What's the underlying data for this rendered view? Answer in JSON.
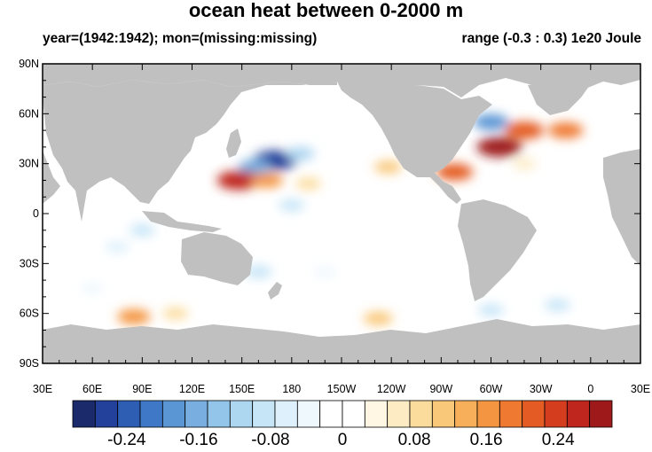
{
  "title": "ocean heat between 0-2000 m",
  "subtitle_left": "year=(1942:1942); mon=(missing:missing)",
  "subtitle_right": "range (-0.3 : 0.3) 1e20 Joule",
  "lat_ticks": [
    {
      "value": 90,
      "label": "90N"
    },
    {
      "value": 60,
      "label": "60N"
    },
    {
      "value": 30,
      "label": "30N"
    },
    {
      "value": 0,
      "label": "0"
    },
    {
      "value": -30,
      "label": "30S"
    },
    {
      "value": -60,
      "label": "60S"
    },
    {
      "value": -90,
      "label": "90S"
    }
  ],
  "lon_ticks": [
    {
      "value": 30,
      "label": "30E"
    },
    {
      "value": 60,
      "label": "60E"
    },
    {
      "value": 90,
      "label": "90E"
    },
    {
      "value": 120,
      "label": "120E"
    },
    {
      "value": 150,
      "label": "150E"
    },
    {
      "value": 180,
      "label": "180"
    },
    {
      "value": 210,
      "label": "150W"
    },
    {
      "value": 240,
      "label": "120W"
    },
    {
      "value": 270,
      "label": "90W"
    },
    {
      "value": 300,
      "label": "60W"
    },
    {
      "value": 330,
      "label": "30W"
    },
    {
      "value": 360,
      "label": "0"
    },
    {
      "value": 390,
      "label": "30E"
    }
  ],
  "colorbar": {
    "colors": [
      "#1b2a6b",
      "#23409a",
      "#2e5db4",
      "#3f78c6",
      "#5a95d4",
      "#78aee0",
      "#93c4ea",
      "#add6f1",
      "#c6e5f7",
      "#ddf0fb",
      "#eef8fd",
      "#ffffff",
      "#ffffff",
      "#fff7e3",
      "#fdebc4",
      "#fbdc9c",
      "#f9c879",
      "#f7b059",
      "#f49541",
      "#ef7930",
      "#e45c24",
      "#d43e1f",
      "#bf261d",
      "#9e1a1a"
    ],
    "labels": [
      {
        "value": -0.24,
        "text": "-0.24"
      },
      {
        "value": -0.16,
        "text": "-0.16"
      },
      {
        "value": -0.08,
        "text": "-0.08"
      },
      {
        "value": 0,
        "text": "0"
      },
      {
        "value": 0.08,
        "text": "0.08"
      },
      {
        "value": 0.16,
        "text": "0.16"
      },
      {
        "value": 0.24,
        "text": "0.24"
      }
    ],
    "range": [
      -0.3,
      0.3
    ]
  },
  "colors": {
    "land": "#c0c0c0",
    "ocean": "#ffffff"
  },
  "anomalies": [
    {
      "lon": 170,
      "lat": 32,
      "v": -0.27
    },
    {
      "lon": 158,
      "lat": 28,
      "v": -0.16
    },
    {
      "lon": 185,
      "lat": 36,
      "v": -0.12
    },
    {
      "lon": 148,
      "lat": 20,
      "v": 0.26
    },
    {
      "lon": 165,
      "lat": 20,
      "v": 0.15
    },
    {
      "lon": 190,
      "lat": 18,
      "v": 0.08
    },
    {
      "lon": 238,
      "lat": 28,
      "v": 0.1
    },
    {
      "lon": 180,
      "lat": 5,
      "v": -0.08
    },
    {
      "lon": 90,
      "lat": -10,
      "v": -0.08
    },
    {
      "lon": 75,
      "lat": -20,
      "v": -0.06
    },
    {
      "lon": 160,
      "lat": -35,
      "v": -0.1
    },
    {
      "lon": 85,
      "lat": -62,
      "v": 0.16
    },
    {
      "lon": 110,
      "lat": -60,
      "v": 0.08
    },
    {
      "lon": 232,
      "lat": -63,
      "v": 0.12
    },
    {
      "lon": 300,
      "lat": 55,
      "v": -0.18
    },
    {
      "lon": 320,
      "lat": 50,
      "v": 0.22
    },
    {
      "lon": 345,
      "lat": 50,
      "v": 0.18
    },
    {
      "lon": 305,
      "lat": 40,
      "v": 0.28
    },
    {
      "lon": 278,
      "lat": 25,
      "v": 0.2
    },
    {
      "lon": 320,
      "lat": 30,
      "v": 0.06
    },
    {
      "lon": 340,
      "lat": -55,
      "v": -0.08
    },
    {
      "lon": 300,
      "lat": -58,
      "v": -0.08
    },
    {
      "lon": 200,
      "lat": -35,
      "v": -0.05
    },
    {
      "lon": 60,
      "lat": -45,
      "v": -0.05
    }
  ]
}
